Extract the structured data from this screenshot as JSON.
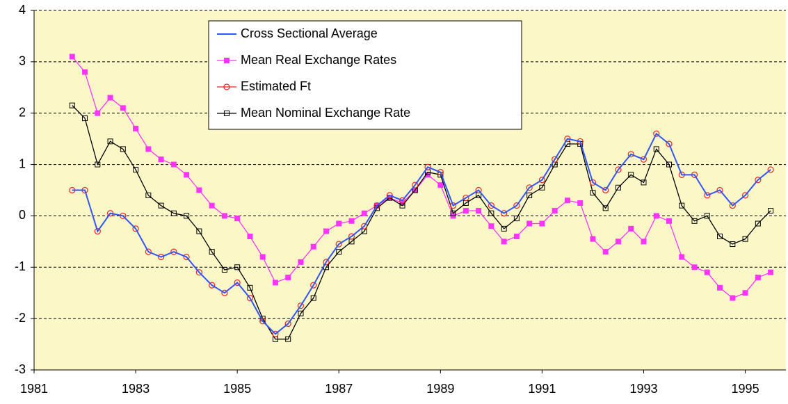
{
  "chart_data": {
    "type": "line",
    "x": [
      1981.75,
      1982,
      1982.25,
      1982.5,
      1982.75,
      1983,
      1983.25,
      1983.5,
      1983.75,
      1984,
      1984.25,
      1984.5,
      1984.75,
      1985,
      1985.25,
      1985.5,
      1985.75,
      1986,
      1986.25,
      1986.5,
      1986.75,
      1987,
      1987.25,
      1987.5,
      1987.75,
      1988,
      1988.25,
      1988.5,
      1988.75,
      1989,
      1989.25,
      1989.5,
      1989.75,
      1990,
      1990.25,
      1990.5,
      1990.75,
      1991,
      1991.25,
      1991.5,
      1991.75,
      1992,
      1992.25,
      1992.5,
      1992.75,
      1993,
      1993.25,
      1993.5,
      1993.75,
      1994,
      1994.25,
      1994.5,
      1994.75,
      1995,
      1995.25,
      1995.5
    ],
    "series": [
      {
        "name": "Cross Sectional Average",
        "color": "#3355ff",
        "marker": "none",
        "values": [
          0.5,
          0.5,
          -0.3,
          0.05,
          0.0,
          -0.25,
          -0.7,
          -0.8,
          -0.7,
          -0.8,
          -1.1,
          -1.35,
          -1.5,
          -1.3,
          -1.6,
          -2.05,
          -2.3,
          -2.1,
          -1.75,
          -1.35,
          -0.9,
          -0.55,
          -0.4,
          -0.2,
          0.2,
          0.4,
          0.3,
          0.6,
          0.95,
          0.85,
          0.2,
          0.35,
          0.5,
          0.2,
          0.05,
          0.2,
          0.55,
          0.7,
          1.1,
          1.5,
          1.45,
          0.65,
          0.5,
          0.9,
          1.2,
          1.1,
          1.6,
          1.4,
          0.8,
          0.8,
          0.4,
          0.5,
          0.2,
          0.4,
          0.7,
          0.9
        ]
      },
      {
        "name": "Mean Real Exchange Rates",
        "color": "#ff33ff",
        "marker": "square-filled",
        "values": [
          3.1,
          2.8,
          2.0,
          2.3,
          2.1,
          1.7,
          1.3,
          1.1,
          1.0,
          0.8,
          0.5,
          0.2,
          0.0,
          -0.05,
          -0.4,
          -0.8,
          -1.3,
          -1.2,
          -0.9,
          -0.6,
          -0.3,
          -0.15,
          -0.1,
          0.05,
          0.2,
          0.35,
          0.25,
          0.5,
          0.8,
          0.6,
          0.0,
          0.1,
          0.1,
          -0.2,
          -0.5,
          -0.4,
          -0.15,
          -0.15,
          0.1,
          0.3,
          0.25,
          -0.45,
          -0.7,
          -0.5,
          -0.25,
          -0.5,
          0.0,
          -0.1,
          -0.8,
          -1.0,
          -1.1,
          -1.4,
          -1.6,
          -1.5,
          -1.2,
          -1.1
        ]
      },
      {
        "name": "Estimated Ft",
        "color": "#ee2222",
        "marker": "circle-open",
        "values": [
          0.5,
          0.5,
          -0.3,
          0.05,
          0.0,
          -0.25,
          -0.7,
          -0.8,
          -0.7,
          -0.8,
          -1.1,
          -1.35,
          -1.5,
          -1.3,
          -1.6,
          -2.05,
          -2.3,
          -2.1,
          -1.75,
          -1.35,
          -0.9,
          -0.55,
          -0.4,
          -0.2,
          0.2,
          0.4,
          0.3,
          0.6,
          0.95,
          0.85,
          0.2,
          0.35,
          0.5,
          0.2,
          0.05,
          0.2,
          0.55,
          0.7,
          1.1,
          1.5,
          1.45,
          0.65,
          0.5,
          0.9,
          1.2,
          1.1,
          1.6,
          1.4,
          0.8,
          0.8,
          0.4,
          0.5,
          0.2,
          0.4,
          0.7,
          0.9
        ]
      },
      {
        "name": "Mean Nominal Exchange Rate",
        "color": "#000000",
        "marker": "square-open",
        "values": [
          2.15,
          1.9,
          1.0,
          1.45,
          1.3,
          0.9,
          0.4,
          0.2,
          0.05,
          0.0,
          -0.3,
          -0.7,
          -1.05,
          -1.0,
          -1.4,
          -2.0,
          -2.4,
          -2.4,
          -1.9,
          -1.6,
          -1.0,
          -0.7,
          -0.5,
          -0.3,
          0.15,
          0.35,
          0.2,
          0.5,
          0.85,
          0.8,
          0.05,
          0.25,
          0.4,
          0.05,
          -0.25,
          -0.05,
          0.4,
          0.55,
          1.0,
          1.4,
          1.4,
          0.45,
          0.15,
          0.55,
          0.8,
          0.65,
          1.3,
          1.0,
          0.2,
          -0.1,
          0.0,
          -0.4,
          -0.55,
          -0.45,
          -0.15,
          0.1
        ]
      }
    ],
    "xlim": [
      1981,
      1995.8
    ],
    "xticks": [
      1981,
      1983,
      1985,
      1987,
      1989,
      1991,
      1993,
      1995
    ],
    "ylim": [
      -3,
      4
    ],
    "yticks": [
      -3,
      -2,
      -1,
      0,
      1,
      2,
      3,
      4
    ],
    "grid": true,
    "legend": "top"
  }
}
